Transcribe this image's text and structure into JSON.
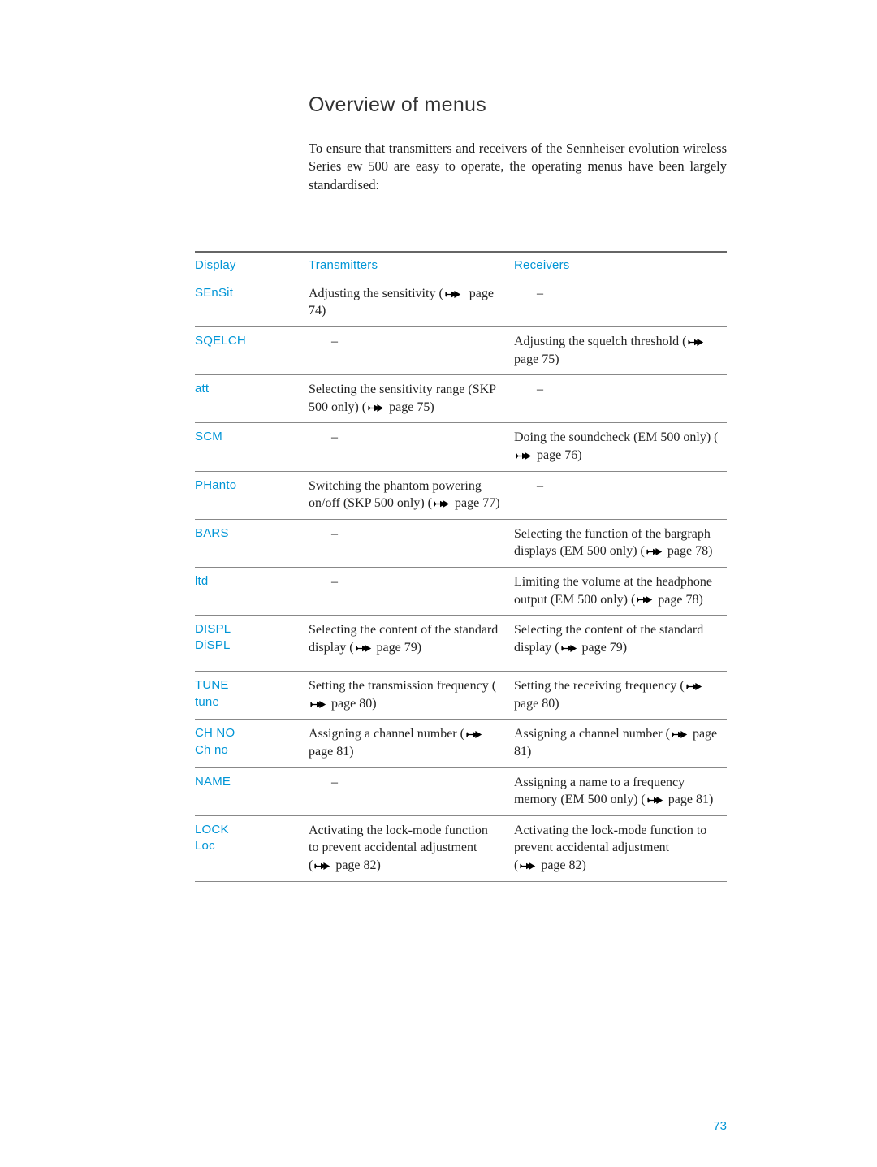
{
  "colors": {
    "accent": "#0095d6",
    "text": "#222222",
    "rule": "#888888",
    "bg": "#ffffff"
  },
  "title": "Overview of menus",
  "intro": "To ensure that transmitters and receivers of the Sennheiser evolution wireless Series ew 500 are easy to operate, the operating menus have been largely standardised:",
  "headers": {
    "display": "Display",
    "transmitters": "Transmitters",
    "receivers": "Receivers"
  },
  "rows": [
    {
      "display": "SEnSit",
      "tx": {
        "text": "Adjusting the sensitivity",
        "pageref": "page 74",
        "spaced": true
      },
      "rx": {
        "dash": true
      }
    },
    {
      "display": "SQELCH",
      "tx": {
        "dash": true
      },
      "rx": {
        "text": "Adjusting the squelch threshold",
        "pageref": "page 75",
        "paren": true
      }
    },
    {
      "display": "att",
      "tx": {
        "text": "Selecting the sensitivity range (SKP 500 only)",
        "pageref": "page 75",
        "paren": true
      },
      "rx": {
        "dash": true
      }
    },
    {
      "display": "SCM",
      "tx": {
        "dash": true
      },
      "rx": {
        "text": "Doing the soundcheck (EM 500 only)",
        "pageref": "page 76",
        "paren": true
      }
    },
    {
      "display": "PHanto",
      "tx": {
        "text": "Switching the phantom powering on/off (SKP 500 only)",
        "pageref": "page 77",
        "paren": true
      },
      "rx": {
        "dash": true
      }
    },
    {
      "display": "BARS",
      "tx": {
        "dash": true
      },
      "rx": {
        "text": "Selecting the function of the bargraph displays (EM 500 only)",
        "pageref": "page 78",
        "paren": true
      }
    },
    {
      "display": "ltd",
      "tx": {
        "dash": true
      },
      "rx": {
        "text": "Limiting the volume at the headphone output (EM 500 only)",
        "pageref": "page 78",
        "paren": true
      }
    },
    {
      "display": "DISPL\nDiSPL",
      "tx": {
        "text": "Selecting the content of the standard display",
        "pageref": "page 79",
        "paren": true
      },
      "rx": {
        "text": "Selecting the content of the standard display",
        "pageref": "page 79",
        "paren": true
      },
      "extraPad": true
    },
    {
      "display": "TUNE\ntune",
      "tx": {
        "text": "Setting the transmission frequency",
        "pageref": "page 80",
        "paren": true
      },
      "rx": {
        "text": "Setting the receiving frequency",
        "pageref": "page 80",
        "paren": true
      }
    },
    {
      "display": "CH NO\nCh no",
      "tx": {
        "text": "Assigning a channel number",
        "pageref": "page 81",
        "paren": true
      },
      "rx": {
        "text": "Assigning a channel number",
        "pageref": "page 81",
        "paren": true
      }
    },
    {
      "display": "NAME",
      "tx": {
        "dash": true
      },
      "rx": {
        "text": "Assigning a name to a frequency memory (EM 500 only)",
        "pageref": "page 81",
        "paren": true
      }
    },
    {
      "display": "LOCK\nLoc",
      "tx": {
        "text": "Activating the lock-mode function to prevent accidental adjustment",
        "pageref": "page 82",
        "paren": true,
        "newlineParen": true
      },
      "rx": {
        "text": "Activating the lock-mode function to prevent accidental adjustment",
        "pageref": "page 82",
        "paren": true,
        "newlineParen": true
      }
    }
  ],
  "pageNumber": "73"
}
